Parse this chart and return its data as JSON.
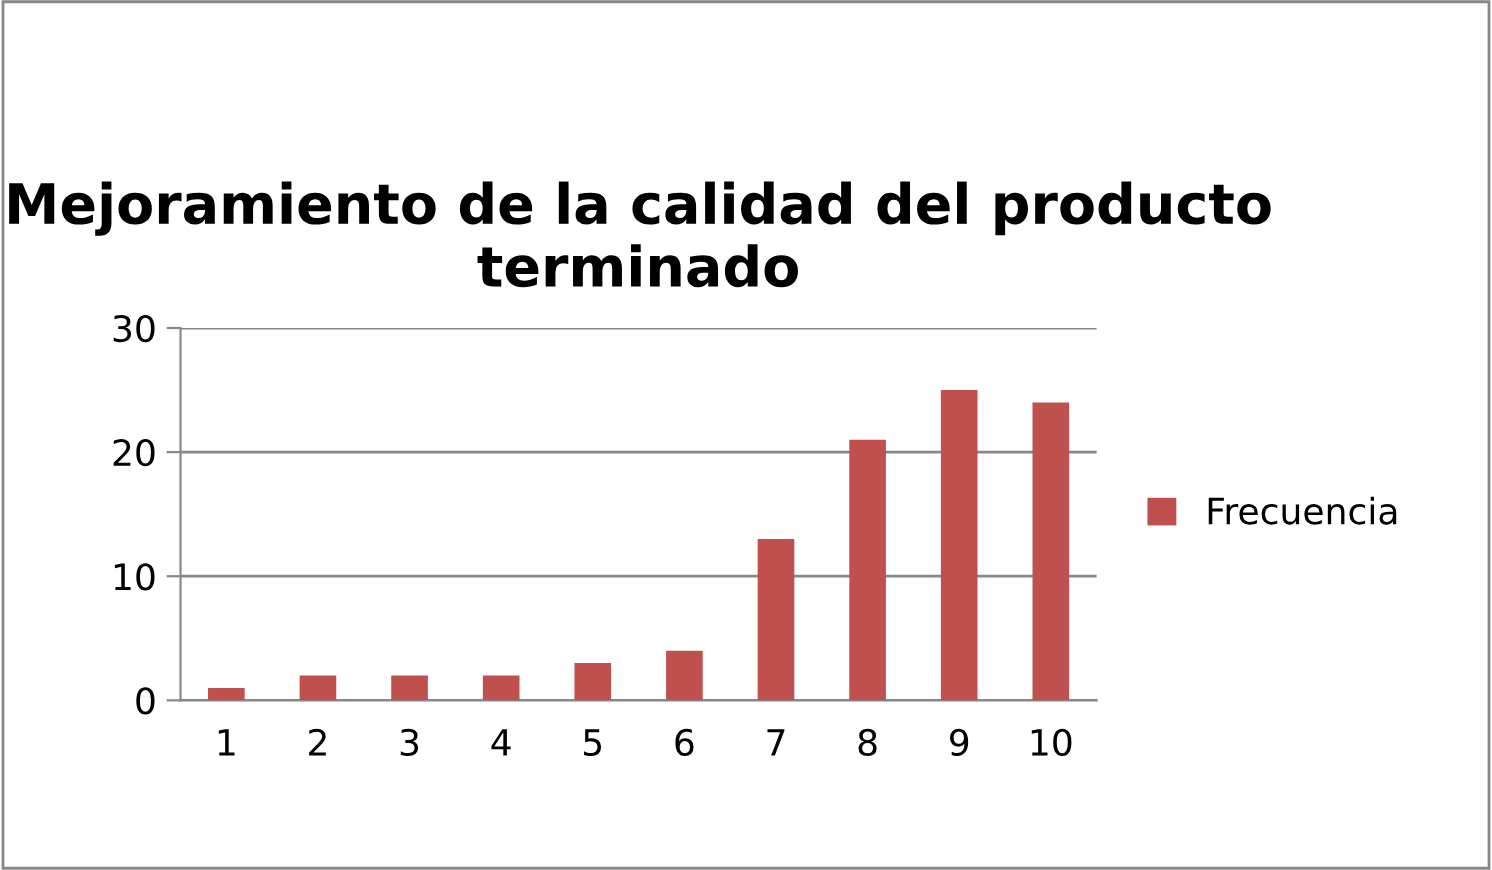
{
  "chart_data": {
    "type": "bar",
    "title": "Mejoramiento de la calidad del producto terminado",
    "categories": [
      "1",
      "2",
      "3",
      "4",
      "5",
      "6",
      "7",
      "8",
      "9",
      "10"
    ],
    "series": [
      {
        "name": "Frecuencia",
        "color": "#c0504d",
        "values": [
          1,
          2,
          2,
          2,
          3,
          4,
          13,
          21,
          25,
          24
        ]
      }
    ],
    "ylim": [
      0,
      30
    ],
    "yticks": [
      0,
      10,
      20,
      30
    ],
    "grid": "y",
    "legend": "right"
  }
}
